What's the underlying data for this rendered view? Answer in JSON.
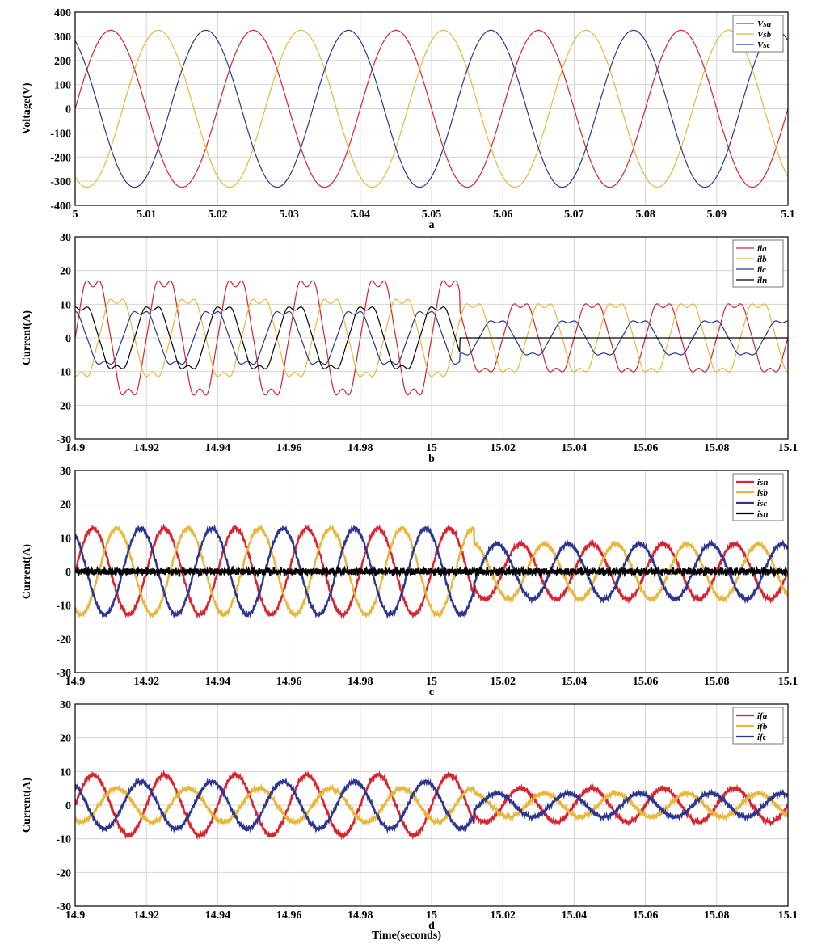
{
  "xlabel": "Time(seconds)",
  "colors": {
    "red": "#d9232f",
    "yellow": "#e8b73a",
    "blue": "#2c3590",
    "black": "#000000"
  },
  "chart_data": [
    {
      "type": "line",
      "panel": "a",
      "ylabel": "Voltage(V)",
      "xlim": [
        5,
        5.1
      ],
      "ylim": [
        -400,
        400
      ],
      "xticks": [
        "5",
        "5.01",
        "5.02",
        "5.03",
        "5.04",
        "5.05",
        "5.06",
        "5.07",
        "5.08",
        "5.09",
        "5.1"
      ],
      "yticks": [
        "400",
        "300",
        "200",
        "100",
        "0",
        "-100",
        "-200",
        "-300",
        "-400"
      ],
      "grid": true,
      "legend": "top-right",
      "frequency_hz": 50,
      "series": [
        {
          "name": "Vsa",
          "color": "#d9232f",
          "amplitude": 325,
          "phase_deg": 0
        },
        {
          "name": "Vsb",
          "color": "#e8b73a",
          "amplitude": 325,
          "phase_deg": -120
        },
        {
          "name": "Vsc",
          "color": "#2c3590",
          "amplitude": 325,
          "phase_deg": 120
        }
      ]
    },
    {
      "type": "line",
      "panel": "b",
      "ylabel": "Current(A)",
      "xlim": [
        14.9,
        15.1
      ],
      "ylim": [
        -30,
        30
      ],
      "xticks": [
        "14.9",
        "14.92",
        "14.94",
        "14.96",
        "14.98",
        "15",
        "15.02",
        "15.04",
        "15.06",
        "15.08",
        "15.1"
      ],
      "yticks": [
        "30",
        "20",
        "10",
        "0",
        "-10",
        "-20",
        "-30"
      ],
      "grid": true,
      "legend": "top-right",
      "frequency_hz": 50,
      "change_time": 15.008,
      "series": [
        {
          "name": "ila",
          "color": "#d9232f",
          "amplitude_before": 18.5,
          "amplitude_after": 11,
          "phase_deg": 0
        },
        {
          "name": "ilb",
          "color": "#e8b73a",
          "amplitude_before": 12.5,
          "amplitude_after": 11,
          "phase_deg": -120
        },
        {
          "name": "ilc",
          "color": "#2c3590",
          "amplitude_before": 8.5,
          "amplitude_after": 5.5,
          "phase_deg": 120
        },
        {
          "name": "iln",
          "color": "#000000",
          "amplitude_before": 10,
          "amplitude_after": 0,
          "phase_deg": 60
        }
      ]
    },
    {
      "type": "line",
      "panel": "c",
      "ylabel": "Current(A)",
      "xlim": [
        14.9,
        15.1
      ],
      "ylim": [
        -30,
        30
      ],
      "xticks": [
        "14.9",
        "14.92",
        "14.94",
        "14.96",
        "14.98",
        "15",
        "15.02",
        "15.04",
        "15.06",
        "15.08",
        "15.1"
      ],
      "yticks": [
        "30",
        "20",
        "10",
        "0",
        "-10",
        "-20",
        "-30"
      ],
      "grid": true,
      "legend": "top-right",
      "frequency_hz": 50,
      "change_time": 15.012,
      "series": [
        {
          "name": "isn",
          "color": "#d9232f",
          "amplitude_before": 12.8,
          "amplitude_after": 8.2,
          "phase_deg": 0
        },
        {
          "name": "isb",
          "color": "#e8b73a",
          "amplitude_before": 12.8,
          "amplitude_after": 8.2,
          "phase_deg": -120
        },
        {
          "name": "isc",
          "color": "#2c3590",
          "amplitude_before": 12.8,
          "amplitude_after": 8.2,
          "phase_deg": 120
        },
        {
          "name": "isn",
          "color": "#000000",
          "amplitude_before": 1,
          "amplitude_after": 1,
          "phase_deg": 0
        }
      ]
    },
    {
      "type": "line",
      "panel": "d",
      "ylabel": "Current(A)",
      "xlim": [
        14.9,
        15.1
      ],
      "ylim": [
        -30,
        30
      ],
      "xticks": [
        "14.9",
        "14.92",
        "14.94",
        "14.96",
        "14.98",
        "15",
        "15.02",
        "15.04",
        "15.06",
        "15.08",
        "15.1"
      ],
      "yticks": [
        "30",
        "20",
        "10",
        "0",
        "-10",
        "-20",
        "-30"
      ],
      "grid": true,
      "legend": "top-right",
      "frequency_hz": 50,
      "change_time": 15.012,
      "series": [
        {
          "name": "ifa",
          "color": "#d9232f",
          "amplitude_before": 9,
          "amplitude_after": 5,
          "phase_deg": 0
        },
        {
          "name": "ifb",
          "color": "#e8b73a",
          "amplitude_before": 5,
          "amplitude_after": 3.5,
          "phase_deg": -120
        },
        {
          "name": "ifc",
          "color": "#2c3590",
          "amplitude_before": 7,
          "amplitude_after": 3.5,
          "phase_deg": 120
        }
      ]
    }
  ]
}
